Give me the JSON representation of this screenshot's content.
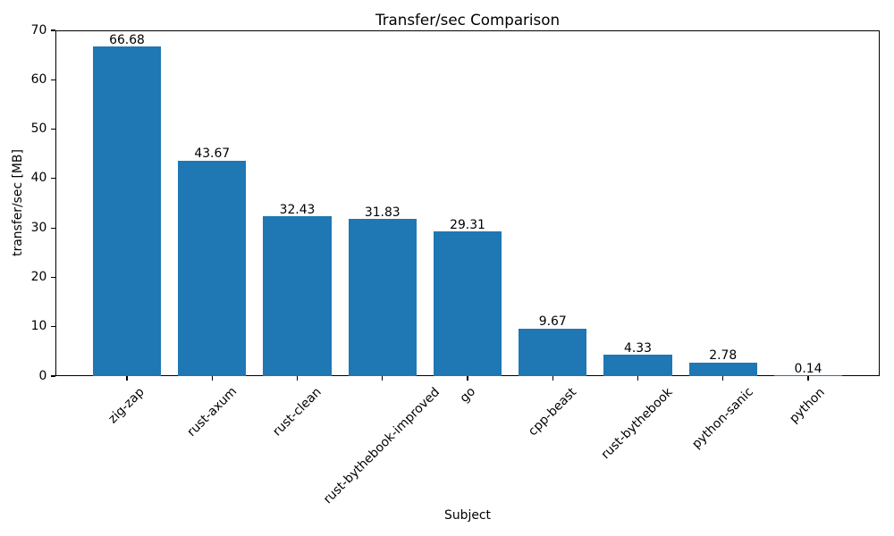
{
  "chart_data": {
    "type": "bar",
    "title": "Transfer/sec Comparison",
    "xlabel": "Subject",
    "ylabel": "transfer/sec [MB]",
    "categories": [
      "zig-zap",
      "rust-axum",
      "rust-clean",
      "rust-bythebook-improved",
      "go",
      "cpp-beast",
      "rust-bythebook",
      "python-sanic",
      "python"
    ],
    "values": [
      66.68,
      43.67,
      32.43,
      31.83,
      29.31,
      9.67,
      4.33,
      2.78,
      0.14
    ],
    "bar_labels": [
      "66.68",
      "43.67",
      "32.43",
      "31.83",
      "29.31",
      "9.67",
      "4.33",
      "2.78",
      "0.14"
    ],
    "yticks": [
      0,
      10,
      20,
      30,
      40,
      50,
      60,
      70
    ],
    "ylim": [
      0,
      70
    ],
    "x_tick_rotation_deg": 45,
    "grid": false,
    "legend": null,
    "bar_color": "#1f77b4",
    "text_color": "#000000",
    "spine_color": "#000000",
    "background_color": "#ffffff"
  }
}
